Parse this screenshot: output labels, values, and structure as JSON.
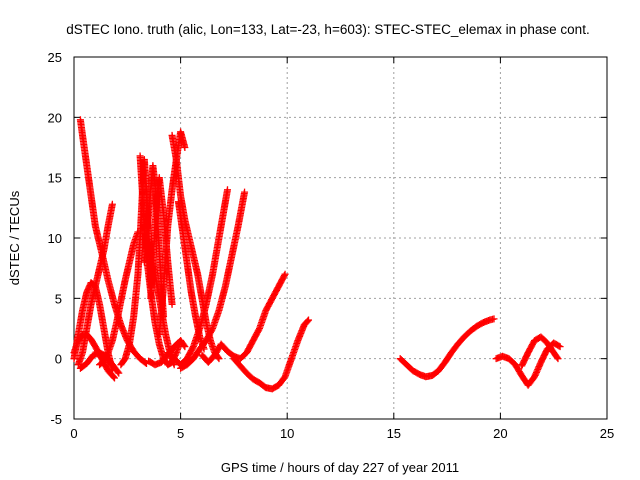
{
  "chart_data": {
    "type": "scatter",
    "title": "dSTEC Iono. truth (alic, Lon=133, Lat=-23, h=603): STEC-STEC_elemax in phase cont.",
    "xlabel": "GPS time / hours of day 227 of year 2011",
    "ylabel": "dSTEC  / TECUs",
    "xlim": [
      0,
      25
    ],
    "ylim": [
      -5,
      25
    ],
    "xticks": [
      0,
      5,
      10,
      15,
      20,
      25
    ],
    "yticks": [
      -5,
      0,
      5,
      10,
      15,
      20,
      25
    ],
    "grid": true,
    "marker": "plus",
    "color": "#ff0000",
    "series": [
      {
        "x": [
          0.3,
          0.4,
          0.6,
          0.8,
          1.0,
          1.3,
          1.6,
          1.9,
          2.2,
          2.5,
          2.8,
          3.1,
          3.4
        ],
        "y": [
          19.8,
          18.5,
          16.0,
          13.5,
          11.0,
          8.8,
          6.5,
          4.5,
          2.8,
          1.5,
          0.6,
          0.0,
          -0.4
        ]
      },
      {
        "x": [
          0.0,
          0.2,
          0.4,
          0.6,
          0.8,
          1.0,
          1.2,
          1.4,
          1.6,
          1.8
        ],
        "y": [
          0.0,
          2.0,
          4.0,
          5.5,
          6.3,
          6.0,
          4.5,
          2.5,
          0.5,
          -1.0
        ]
      },
      {
        "x": [
          0.0,
          0.2,
          0.4,
          0.6,
          0.8,
          1.0,
          1.3,
          1.6,
          1.9
        ],
        "y": [
          0.5,
          1.5,
          2.0,
          2.0,
          1.6,
          1.0,
          0.0,
          -1.0,
          -1.6
        ]
      },
      {
        "x": [
          0.2,
          0.4,
          0.6,
          0.8,
          1.0,
          1.2,
          1.4,
          1.6,
          1.8
        ],
        "y": [
          -0.5,
          0.5,
          2.5,
          4.5,
          6.0,
          7.5,
          9.0,
          11.0,
          12.8
        ]
      },
      {
        "x": [
          0.3,
          0.6,
          0.9,
          1.2,
          1.5,
          1.8,
          2.1
        ],
        "y": [
          -0.8,
          -0.4,
          0.3,
          0.5,
          0.2,
          -0.5,
          -1.2
        ]
      },
      {
        "x": [
          1.2,
          1.4,
          1.6,
          1.8,
          2.0,
          2.2,
          2.4,
          2.6,
          2.8,
          3.0
        ],
        "y": [
          -0.5,
          -0.2,
          0.5,
          1.5,
          3.0,
          4.8,
          6.5,
          8.0,
          9.5,
          10.5
        ]
      },
      {
        "x": [
          2.2,
          2.4,
          2.6,
          2.8,
          3.0,
          3.1,
          3.2,
          3.3,
          3.4,
          3.5,
          3.6
        ],
        "y": [
          -0.5,
          0.0,
          1.2,
          3.5,
          7.0,
          10.0,
          13.5,
          16.5,
          14.0,
          10.0,
          6.0
        ]
      },
      {
        "x": [
          3.1,
          3.2,
          3.3,
          3.4,
          3.6,
          3.8,
          4.0,
          4.2,
          4.4,
          4.6,
          4.8,
          5.0
        ],
        "y": [
          16.8,
          14.0,
          11.0,
          8.5,
          5.5,
          3.0,
          1.2,
          0.0,
          -0.5,
          -0.3,
          0.5,
          1.5
        ]
      },
      {
        "x": [
          3.3,
          3.4,
          3.5,
          3.6,
          3.7,
          3.8,
          3.9,
          4.0,
          4.1,
          4.2
        ],
        "y": [
          8.0,
          10.0,
          12.0,
          14.0,
          16.0,
          14.5,
          12.0,
          9.0,
          6.0,
          3.5
        ]
      },
      {
        "x": [
          3.6,
          3.7,
          3.8,
          3.9,
          4.0,
          4.2,
          4.4,
          4.6
        ],
        "y": [
          5.0,
          8.0,
          11.0,
          13.5,
          15.0,
          12.0,
          8.0,
          4.5
        ]
      },
      {
        "x": [
          4.0,
          4.1,
          4.2,
          4.3,
          4.4,
          4.6,
          4.8,
          5.0,
          5.2
        ],
        "y": [
          2.0,
          4.0,
          6.0,
          8.5,
          11.0,
          14.0,
          16.5,
          18.8,
          17.5
        ]
      },
      {
        "x": [
          4.6,
          4.8,
          5.0,
          5.2,
          5.4,
          5.6,
          5.8,
          6.0,
          6.2,
          6.4,
          6.6,
          6.8
        ],
        "y": [
          18.5,
          16.5,
          13.5,
          11.5,
          10.0,
          8.5,
          7.0,
          5.0,
          3.0,
          1.5,
          0.5,
          0.0
        ]
      },
      {
        "x": [
          4.9,
          5.1,
          5.3,
          5.5,
          5.7,
          5.9,
          6.1
        ],
        "y": [
          13.0,
          10.5,
          8.0,
          5.5,
          3.5,
          1.8,
          0.8
        ]
      },
      {
        "x": [
          3.5,
          3.7,
          3.9,
          4.1,
          4.3,
          4.5,
          4.7
        ],
        "y": [
          10.0,
          8.0,
          6.0,
          4.0,
          2.0,
          0.5,
          -0.5
        ]
      },
      {
        "x": [
          3.5,
          3.8,
          4.1,
          4.4,
          4.7,
          5.0,
          5.2
        ],
        "y": [
          -0.2,
          -0.5,
          -0.3,
          0.3,
          1.0,
          1.5,
          1.0
        ]
      },
      {
        "x": [
          4.4,
          4.7,
          5.0,
          5.3,
          5.6,
          5.9,
          6.2,
          6.5,
          6.8,
          7.0,
          7.2
        ],
        "y": [
          0.5,
          0.0,
          -0.5,
          0.0,
          1.0,
          2.5,
          4.5,
          7.0,
          10.0,
          12.0,
          14.0
        ]
      },
      {
        "x": [
          5.0,
          5.3,
          5.6,
          5.9,
          6.2,
          6.5,
          6.8,
          7.1,
          7.4,
          7.7,
          8.0
        ],
        "y": [
          -0.8,
          -0.5,
          0.0,
          0.8,
          1.5,
          2.5,
          4.0,
          6.0,
          8.5,
          11.0,
          13.8
        ]
      },
      {
        "x": [
          6.0,
          6.3,
          6.6,
          6.9,
          7.2,
          7.5,
          7.8,
          8.1,
          8.4,
          8.7,
          9.0,
          9.3,
          9.6,
          9.9
        ],
        "y": [
          0.3,
          -0.3,
          0.3,
          1.2,
          0.6,
          0.2,
          0.0,
          0.5,
          1.5,
          2.5,
          4.0,
          5.0,
          6.0,
          7.0
        ]
      },
      {
        "x": [
          7.5,
          7.8,
          8.1,
          8.4,
          8.7,
          9.0,
          9.3,
          9.6,
          9.9,
          10.2,
          10.5,
          10.8,
          11.0
        ],
        "y": [
          0.0,
          -0.6,
          -1.2,
          -1.7,
          -2.0,
          -2.4,
          -2.5,
          -2.2,
          -1.5,
          0.0,
          1.5,
          2.8,
          3.2
        ]
      },
      {
        "x": [
          15.3,
          15.6,
          15.9,
          16.2,
          16.5,
          16.8,
          17.1,
          17.4,
          17.7,
          18.0,
          18.3,
          18.6,
          18.9,
          19.2,
          19.5,
          19.7
        ],
        "y": [
          0.0,
          -0.5,
          -1.0,
          -1.3,
          -1.5,
          -1.4,
          -1.0,
          -0.3,
          0.5,
          1.2,
          1.8,
          2.3,
          2.7,
          3.0,
          3.2,
          3.3
        ]
      },
      {
        "x": [
          19.8,
          20.1,
          20.4,
          20.7,
          21.0,
          21.3,
          21.6,
          21.9,
          22.2,
          22.5,
          22.8
        ],
        "y": [
          0.0,
          0.2,
          0.0,
          -0.5,
          -1.4,
          -2.2,
          -1.5,
          -0.3,
          0.8,
          1.3,
          1.0
        ]
      },
      {
        "x": [
          21.0,
          21.3,
          21.6,
          21.9,
          22.2,
          22.5,
          22.7
        ],
        "y": [
          -0.6,
          0.5,
          1.5,
          1.8,
          1.3,
          0.5,
          0.0
        ]
      }
    ]
  }
}
